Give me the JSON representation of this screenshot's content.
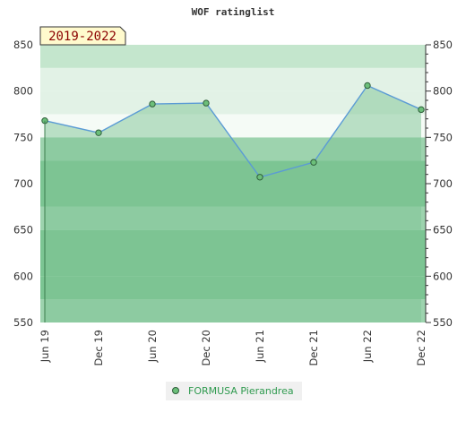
{
  "chart_data": {
    "type": "area",
    "title": "WOF ratinglist",
    "range_label": "2019-2022",
    "xlabel": "",
    "ylabel": "",
    "ylim": [
      550,
      850
    ],
    "y_ticks": [
      550,
      600,
      650,
      700,
      750,
      800,
      850
    ],
    "x_ticks": [
      "Jun 19",
      "Dec 19",
      "Jun 20",
      "Dec 20",
      "Jun 21",
      "Dec 21",
      "Jun 22",
      "Dec 22"
    ],
    "series": [
      {
        "name": "FORMUSA Pierandrea",
        "x": [
          "Jun 19",
          "Dec 19",
          "Jun 20",
          "Dec 20",
          "Jun 21",
          "Dec 21",
          "Jun 22",
          "Dec 22"
        ],
        "values": [
          768,
          755,
          786,
          787,
          707,
          723,
          806,
          780
        ]
      }
    ],
    "legend_position": "bottom-center",
    "grid": true,
    "colors": {
      "line": "#5b9bd5",
      "area": "#7ec494",
      "marker_fill": "#6cbf7a",
      "marker_stroke": "#2e5e3a",
      "band_strong": "#7cc593",
      "band_medium": "#9dd3ae",
      "band_light": "#c4e6cd",
      "band_pale": "#e2f2e6",
      "band_white": "#f5fbf6",
      "label_bg": "#fffacd",
      "label_text": "#8b0000"
    }
  }
}
